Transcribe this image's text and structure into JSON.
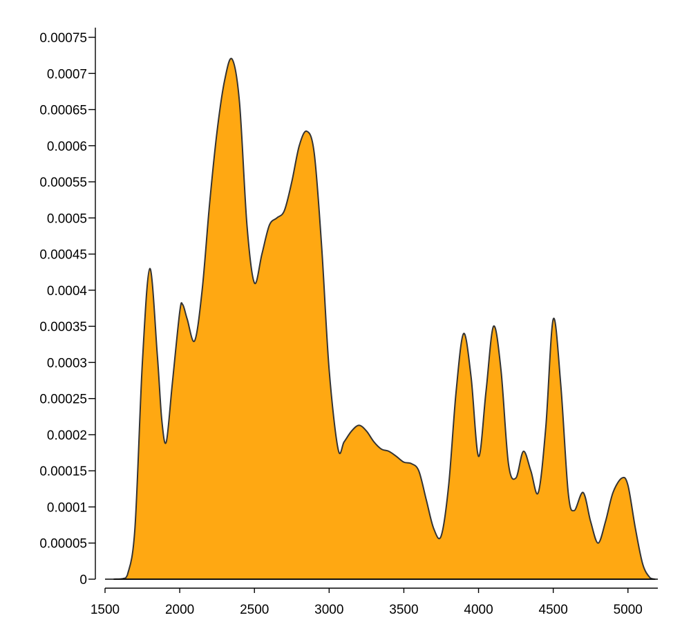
{
  "chart_data": {
    "type": "area",
    "title": "",
    "xlabel": "",
    "ylabel": "",
    "xlim": [
      1500,
      5200
    ],
    "ylim": [
      0,
      0.00075
    ],
    "x_ticks": [
      1500,
      2000,
      2500,
      3000,
      3500,
      4000,
      4500,
      5000
    ],
    "x_tick_labels": [
      "1500",
      "2000",
      "2500",
      "3000",
      "3500",
      "4000",
      "4500",
      "5000"
    ],
    "y_ticks": [
      0,
      5e-05,
      0.0001,
      0.00015,
      0.0002,
      0.00025,
      0.0003,
      0.00035,
      0.0004,
      0.00045,
      0.0005,
      0.00055,
      0.0006,
      0.00065,
      0.0007,
      0.00075
    ],
    "y_tick_labels": [
      "0",
      "0.00005",
      "0.0001",
      "0.00015",
      "0.0002",
      "0.00025",
      "0.0003",
      "0.00035",
      "0.0004",
      "0.00045",
      "0.0005",
      "0.00055",
      "0.0006",
      "0.00065",
      "0.0007",
      "0.00075"
    ],
    "grid": false,
    "fill_color": "#FFA812",
    "line_color": "#333333",
    "series": [
      {
        "x": [
          1560,
          1620,
          1650,
          1700,
          1750,
          1800,
          1850,
          1880,
          1910,
          1950,
          2000,
          2020,
          2050,
          2100,
          2150,
          2200,
          2250,
          2300,
          2350,
          2400,
          2450,
          2500,
          2550,
          2600,
          2650,
          2700,
          2750,
          2800,
          2850,
          2900,
          2950,
          3000,
          3060,
          3100,
          3150,
          3200,
          3250,
          3300,
          3350,
          3400,
          3450,
          3500,
          3550,
          3600,
          3650,
          3700,
          3750,
          3800,
          3850,
          3900,
          3950,
          4000,
          4050,
          4100,
          4150,
          4200,
          4250,
          4300,
          4350,
          4400,
          4450,
          4500,
          4550,
          4600,
          4640,
          4700,
          4750,
          4800,
          4850,
          4900,
          4960,
          5000,
          5050,
          5100,
          5150,
          5180
        ],
        "y": [
          0,
          8e-07,
          6e-06,
          7e-05,
          0.0003,
          0.00043,
          0.00031,
          0.00022,
          0.00019,
          0.00027,
          0.00037,
          0.00038,
          0.00036,
          0.00033,
          0.0004,
          0.00052,
          0.00062,
          0.00069,
          0.00072,
          0.00066,
          0.00049,
          0.00041,
          0.00045,
          0.00049,
          0.0005,
          0.00051,
          0.00055,
          0.0006,
          0.00062,
          0.00059,
          0.00046,
          0.00029,
          0.00018,
          0.00019,
          0.000205,
          0.000213,
          0.000205,
          0.00019,
          0.00018,
          0.000177,
          0.00017,
          0.000162,
          0.00016,
          0.00015,
          0.00011,
          7e-05,
          6e-05,
          0.00013,
          0.00026,
          0.00034,
          0.00028,
          0.00017,
          0.00026,
          0.00035,
          0.00029,
          0.00016,
          0.00014,
          0.000177,
          0.00015,
          0.00012,
          0.00021,
          0.00036,
          0.00027,
          0.00012,
          9.5e-05,
          0.00012,
          8e-05,
          5e-05,
          8e-05,
          0.00012,
          0.00014,
          0.00013,
          7e-05,
          2e-05,
          1.5e-06,
          0
        ]
      }
    ]
  }
}
